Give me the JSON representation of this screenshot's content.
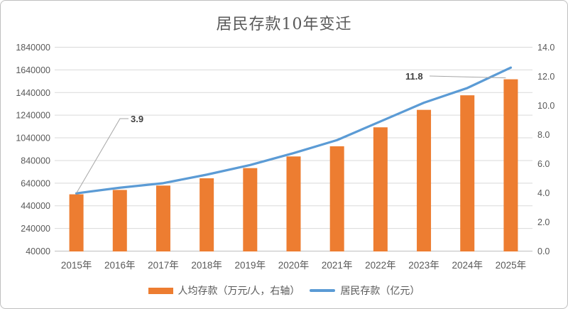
{
  "window": {
    "background": "#ffffff",
    "border_color": "#bfbfbf"
  },
  "chart_data": {
    "type": "combo",
    "title": "居民存款10年变迁",
    "categories": [
      "2015年",
      "2016年",
      "2017年",
      "2018年",
      "2019年",
      "2020年",
      "2021年",
      "2022年",
      "2023年",
      "2024年",
      "2025年"
    ],
    "series": [
      {
        "name": "人均存款（万元/人，右轴）",
        "kind": "bar",
        "axis": "right",
        "color": "#ED7D31",
        "values": [
          3.9,
          4.2,
          4.5,
          5.0,
          5.7,
          6.5,
          7.2,
          8.5,
          9.7,
          10.7,
          11.8
        ]
      },
      {
        "name": "居民存款（亿元）",
        "kind": "line",
        "axis": "left",
        "color": "#5B9BD5",
        "values": [
          550000,
          600000,
          640000,
          715000,
          800000,
          905000,
          1020000,
          1185000,
          1350000,
          1480000,
          1660000
        ]
      }
    ],
    "left_axis": {
      "min": 40000,
      "max": 1840000,
      "step": 200000,
      "labels": [
        "40000",
        "240000",
        "440000",
        "640000",
        "840000",
        "1040000",
        "1240000",
        "1440000",
        "1640000",
        "1840000"
      ]
    },
    "right_axis": {
      "min": 0.0,
      "max": 14.0,
      "step": 2.0,
      "labels": [
        "0.0",
        "2.0",
        "4.0",
        "6.0",
        "8.0",
        "10.0",
        "12.0",
        "14.0"
      ]
    },
    "annotations": [
      {
        "text": "3.9",
        "series": "人均存款",
        "category": "2015年"
      },
      {
        "text": "11.8",
        "series": "人均存款",
        "category": "2025年"
      }
    ],
    "grid": true,
    "legend_position": "bottom",
    "styles": {
      "grid_color": "#D9D9D9",
      "axis_line_color": "#BFBFBF",
      "tick_label_color": "#595959",
      "title_color": "#595959",
      "annotation_color": "#404040",
      "leader_line_color": "#A6A6A6"
    }
  }
}
